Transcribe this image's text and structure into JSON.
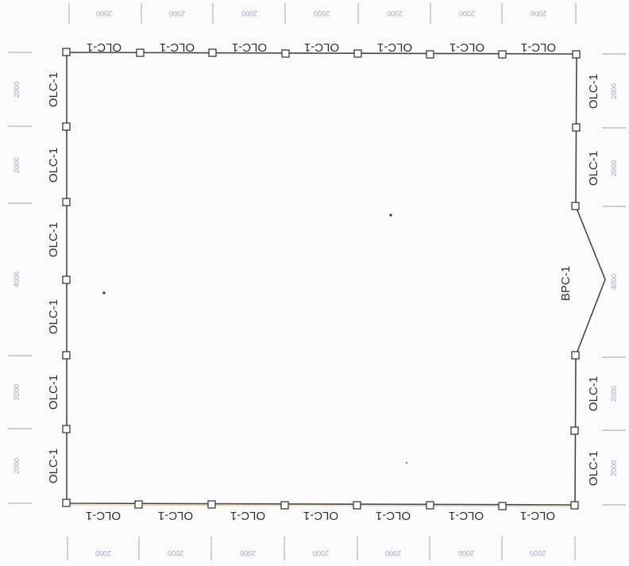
{
  "labels": {
    "top": [
      "OLC-1",
      "OLC-1",
      "OLC-1",
      "OLC-1",
      "OLC-1",
      "OLC-1",
      "OLC-1"
    ],
    "bottom": [
      "OLC-1",
      "OLC-1",
      "OLC-1",
      "OLC-1",
      "OLC-1",
      "OLC-1",
      "OLC-1"
    ],
    "left": [
      "OLC-1",
      "OLC-1",
      "OLC-1",
      "OLC-1",
      "OLC-1",
      "OLC-1"
    ],
    "right": [
      "OLC-1",
      "OLC-1",
      "BPC-1",
      "OLC-1",
      "OLC-1"
    ]
  },
  "dimensions": {
    "top": [
      "2000",
      "2000",
      "2000",
      "2000",
      "2000",
      "2000",
      "2000"
    ],
    "bottom": [
      "2000",
      "2000",
      "2000",
      "2000",
      "2000",
      "2000",
      "2000"
    ],
    "left": [
      "2000",
      "2000",
      "4000",
      "2000",
      "2000"
    ],
    "right": [
      "2000",
      "2000",
      "4000",
      "2000",
      "2000"
    ]
  },
  "colors": {
    "wall": "#45454d",
    "label": "#2f2f35",
    "dimension": "#9aa6c4",
    "accent_line": "#e0a34a"
  }
}
